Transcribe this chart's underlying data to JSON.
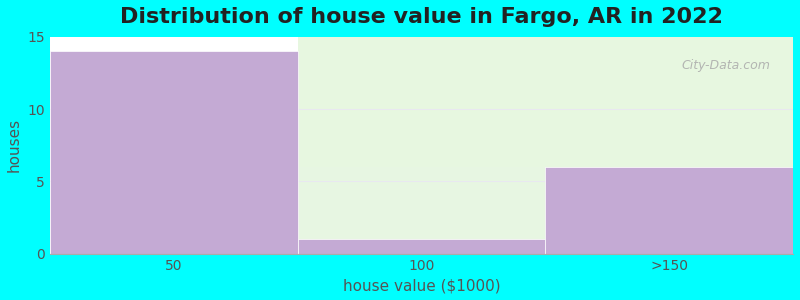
{
  "title": "Distribution of house value in Fargo, AR in 2022",
  "xlabel": "house value ($1000)",
  "ylabel": "houses",
  "categories": [
    "50",
    "100",
    ">150"
  ],
  "values": [
    14,
    1,
    6
  ],
  "bar_colors": [
    "#c4aad4",
    "#c4aad4",
    "#c4aad4"
  ],
  "ylim": [
    0,
    15
  ],
  "yticks": [
    0,
    5,
    10,
    15
  ],
  "background_color": "#00ffff",
  "plot_bg_color": "#ffffff",
  "title_fontsize": 16,
  "axis_fontsize": 11,
  "tick_fontsize": 10,
  "watermark": "City-Data.com",
  "grid_color": "#e8e8f0",
  "green_bg_color": "#d8f0d0",
  "green_bg_alpha": 0.6
}
